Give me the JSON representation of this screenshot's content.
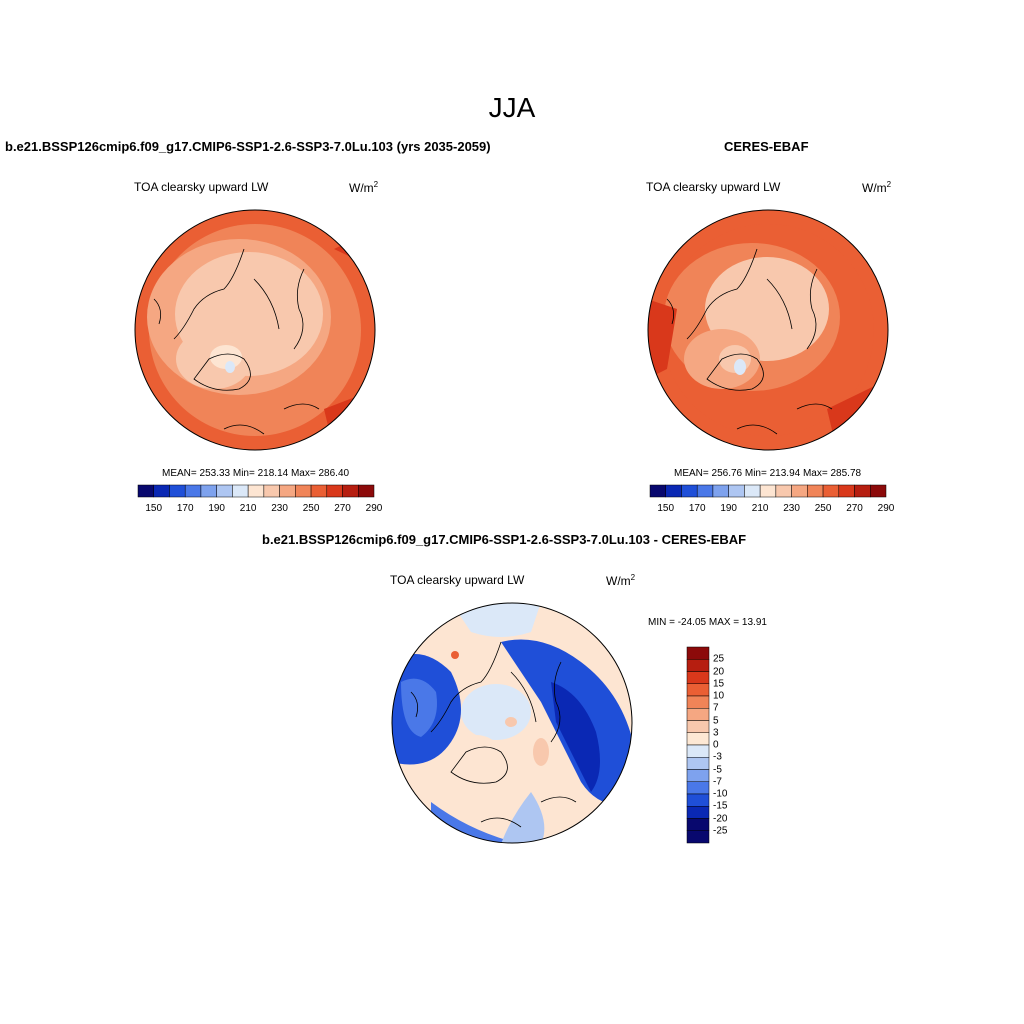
{
  "season": "JJA",
  "panels": {
    "model": {
      "title": "b.e21.BSSP126cmip6.f09_g17.CMIP6-SSP1-2.6-SSP3-7.0Lu.103 (yrs 2035-2059)",
      "variable": "TOA clearsky upward LW",
      "units_base": "W/m",
      "units_exp": "2",
      "stats": "MEAN= 253.33  Min= 218.14  Max= 286.40"
    },
    "obs": {
      "title": "CERES-EBAF",
      "variable": "TOA clearsky upward LW",
      "units_base": "W/m",
      "units_exp": "2",
      "stats": "MEAN= 256.76  Min= 213.94  Max= 285.78"
    },
    "diff": {
      "title": "b.e21.BSSP126cmip6.f09_g17.CMIP6-SSP1-2.6-SSP3-7.0Lu.103 - CERES-EBAF",
      "variable": "TOA clearsky upward LW",
      "units_base": "W/m",
      "units_exp": "2",
      "stats": "MIN = -24.05 MAX =  13.91"
    }
  },
  "colorbar_main": {
    "colors": [
      "#08086e",
      "#0a28b4",
      "#1f4fd8",
      "#4a78e8",
      "#7ea2ee",
      "#aec6f2",
      "#dbe8f8",
      "#fde5d2",
      "#f8c8ad",
      "#f5a782",
      "#f08458",
      "#ea5f34",
      "#d9381b",
      "#b61e10",
      "#8c0a0a"
    ],
    "tick_labels": [
      "150",
      "170",
      "190",
      "210",
      "230",
      "250",
      "270",
      "290"
    ]
  },
  "colorbar_diff": {
    "colors": [
      "#8c0a0a",
      "#b61e10",
      "#d9381b",
      "#ea5f34",
      "#f08458",
      "#f5a782",
      "#f8c8ad",
      "#fde8d4",
      "#dbe8f8",
      "#aec6f2",
      "#7ea2ee",
      "#4a78e8",
      "#1f4fd8",
      "#0a28b4",
      "#08086e"
    ],
    "tick_labels": [
      "25",
      "20",
      "15",
      "10",
      "7",
      "5",
      "3",
      "0",
      "-3",
      "-5",
      "-7",
      "-10",
      "-15",
      "-20",
      "-25"
    ]
  }
}
